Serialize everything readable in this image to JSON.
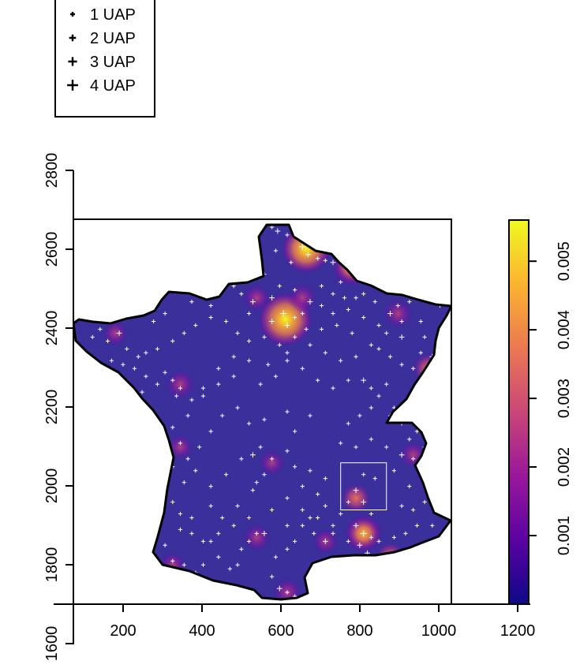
{
  "chart_data": {
    "type": "heatmap",
    "title": "",
    "xlabel": "",
    "ylabel": "",
    "xlim": [
      40,
      1240
    ],
    "ylim": [
      1600,
      2810
    ],
    "x_ticks": [
      200,
      400,
      600,
      800,
      1000,
      1200
    ],
    "y_ticks": [
      1600,
      1800,
      2000,
      2200,
      2400,
      2600,
      2800
    ],
    "map_window": {
      "x": [
        40,
        1030
      ],
      "y": [
        1700,
        2680
      ]
    },
    "highlight_window": {
      "x": [
        740,
        860
      ],
      "y": [
        1940,
        2060
      ],
      "color": "#ffffff"
    },
    "legend": {
      "placement": "top-left",
      "items": [
        "1 UAP",
        "2 UAP",
        "3 UAP",
        "4 UAP"
      ]
    },
    "colorbar": {
      "ticks": [
        0.001,
        0.002,
        0.003,
        0.004,
        0.005
      ],
      "range": [
        0,
        0.0056
      ],
      "colors": [
        "#0d0887",
        "#5b02a3",
        "#9a179b",
        "#cb4678",
        "#eb7852",
        "#fbb32f",
        "#f0f921"
      ]
    },
    "background_color": "#3b2f9c",
    "point_color": "#ffffff",
    "hotspots": [
      {
        "x": 595,
        "y": 2425,
        "weight": 1.0
      },
      {
        "x": 650,
        "y": 2605,
        "weight": 0.85
      },
      {
        "x": 770,
        "y": 2560,
        "weight": 0.6
      },
      {
        "x": 800,
        "y": 1880,
        "weight": 0.55
      },
      {
        "x": 780,
        "y": 1970,
        "weight": 0.35
      },
      {
        "x": 970,
        "y": 2300,
        "weight": 0.4
      },
      {
        "x": 890,
        "y": 2440,
        "weight": 0.3
      },
      {
        "x": 870,
        "y": 1820,
        "weight": 0.35
      },
      {
        "x": 930,
        "y": 2080,
        "weight": 0.25
      },
      {
        "x": 600,
        "y": 1730,
        "weight": 0.3
      },
      {
        "x": 320,
        "y": 2260,
        "weight": 0.3
      },
      {
        "x": 520,
        "y": 2480,
        "weight": 0.25
      },
      {
        "x": 640,
        "y": 2480,
        "weight": 0.3
      },
      {
        "x": 320,
        "y": 2100,
        "weight": 0.2
      },
      {
        "x": 520,
        "y": 1870,
        "weight": 0.25
      },
      {
        "x": 300,
        "y": 1800,
        "weight": 0.2
      },
      {
        "x": 150,
        "y": 2390,
        "weight": 0.2
      },
      {
        "x": 560,
        "y": 2060,
        "weight": 0.2
      },
      {
        "x": 700,
        "y": 1860,
        "weight": 0.2
      }
    ],
    "points": [
      [
        560,
        2660,
        1
      ],
      [
        575,
        2650,
        2
      ],
      [
        600,
        2640,
        1
      ],
      [
        640,
        2610,
        3
      ],
      [
        655,
        2590,
        2
      ],
      [
        680,
        2580,
        1
      ],
      [
        700,
        2575,
        1
      ],
      [
        720,
        2570,
        2
      ],
      [
        760,
        2560,
        2
      ],
      [
        780,
        2540,
        1
      ],
      [
        740,
        2520,
        1
      ],
      [
        610,
        2570,
        1
      ],
      [
        570,
        2600,
        1
      ],
      [
        530,
        2560,
        1
      ],
      [
        510,
        2470,
        2
      ],
      [
        480,
        2490,
        1
      ],
      [
        500,
        2440,
        1
      ],
      [
        560,
        2420,
        2
      ],
      [
        590,
        2440,
        3
      ],
      [
        600,
        2410,
        2
      ],
      [
        620,
        2430,
        1
      ],
      [
        640,
        2440,
        1
      ],
      [
        660,
        2470,
        2
      ],
      [
        690,
        2460,
        1
      ],
      [
        720,
        2440,
        1
      ],
      [
        760,
        2450,
        1
      ],
      [
        780,
        2480,
        1
      ],
      [
        800,
        2430,
        1
      ],
      [
        840,
        2410,
        1
      ],
      [
        870,
        2440,
        2
      ],
      [
        890,
        2460,
        1
      ],
      [
        900,
        2420,
        1
      ],
      [
        920,
        2470,
        1
      ],
      [
        950,
        2420,
        1
      ],
      [
        960,
        2380,
        1
      ],
      [
        980,
        2330,
        2
      ],
      [
        970,
        2300,
        2
      ],
      [
        950,
        2270,
        1
      ],
      [
        900,
        2380,
        2
      ],
      [
        860,
        2390,
        1
      ],
      [
        820,
        2360,
        1
      ],
      [
        770,
        2390,
        1
      ],
      [
        730,
        2410,
        1
      ],
      [
        690,
        2400,
        1
      ],
      [
        650,
        2400,
        1
      ],
      [
        620,
        2380,
        1
      ],
      [
        600,
        2340,
        1
      ],
      [
        580,
        2360,
        1
      ],
      [
        540,
        2380,
        1
      ],
      [
        500,
        2370,
        1
      ],
      [
        470,
        2390,
        1
      ],
      [
        440,
        2420,
        1
      ],
      [
        400,
        2430,
        1
      ],
      [
        360,
        2410,
        1
      ],
      [
        330,
        2390,
        1
      ],
      [
        300,
        2370,
        1
      ],
      [
        260,
        2350,
        1
      ],
      [
        230,
        2340,
        1
      ],
      [
        210,
        2330,
        1
      ],
      [
        180,
        2350,
        1
      ],
      [
        160,
        2390,
        2
      ],
      [
        130,
        2370,
        1
      ],
      [
        110,
        2400,
        1
      ],
      [
        90,
        2380,
        1
      ],
      [
        250,
        2420,
        1
      ],
      [
        280,
        2440,
        1
      ],
      [
        300,
        2500,
        1
      ],
      [
        330,
        2530,
        1
      ],
      [
        300,
        2270,
        1
      ],
      [
        320,
        2250,
        1
      ],
      [
        310,
        2230,
        1
      ],
      [
        350,
        2220,
        1
      ],
      [
        380,
        2250,
        1
      ],
      [
        420,
        2300,
        1
      ],
      [
        460,
        2330,
        1
      ],
      [
        500,
        2320,
        1
      ],
      [
        550,
        2310,
        1
      ],
      [
        600,
        2320,
        1
      ],
      [
        640,
        2300,
        1
      ],
      [
        680,
        2270,
        1
      ],
      [
        720,
        2250,
        1
      ],
      [
        760,
        2270,
        1
      ],
      [
        800,
        2270,
        2
      ],
      [
        820,
        2250,
        1
      ],
      [
        840,
        2230,
        1
      ],
      [
        820,
        2200,
        1
      ],
      [
        790,
        2180,
        1
      ],
      [
        760,
        2160,
        1
      ],
      [
        740,
        2110,
        1
      ],
      [
        780,
        2100,
        1
      ],
      [
        820,
        2120,
        1
      ],
      [
        860,
        2100,
        1
      ],
      [
        870,
        2180,
        1
      ],
      [
        900,
        2160,
        1
      ],
      [
        900,
        2080,
        2
      ],
      [
        930,
        2070,
        1
      ],
      [
        950,
        2040,
        1
      ],
      [
        920,
        2000,
        1
      ],
      [
        880,
        2040,
        1
      ],
      [
        830,
        2020,
        1
      ],
      [
        800,
        2030,
        1
      ],
      [
        780,
        1990,
        2
      ],
      [
        800,
        1960,
        2
      ],
      [
        820,
        1930,
        1
      ],
      [
        780,
        1900,
        2
      ],
      [
        800,
        1880,
        3
      ],
      [
        820,
        1870,
        1
      ],
      [
        790,
        1850,
        2
      ],
      [
        810,
        1830,
        2
      ],
      [
        840,
        1820,
        1
      ],
      [
        860,
        1810,
        2
      ],
      [
        880,
        1820,
        2
      ],
      [
        900,
        1830,
        1
      ],
      [
        920,
        1840,
        1
      ],
      [
        950,
        1850,
        1
      ],
      [
        970,
        1860,
        1
      ],
      [
        930,
        1940,
        1
      ],
      [
        900,
        1950,
        1
      ],
      [
        980,
        1900,
        1
      ],
      [
        1000,
        2000,
        1
      ],
      [
        720,
        1880,
        1
      ],
      [
        700,
        1860,
        2
      ],
      [
        670,
        1880,
        1
      ],
      [
        640,
        1900,
        1
      ],
      [
        660,
        1920,
        1
      ],
      [
        620,
        1860,
        1
      ],
      [
        600,
        1840,
        1
      ],
      [
        570,
        1820,
        1
      ],
      [
        560,
        1770,
        1
      ],
      [
        580,
        1740,
        2
      ],
      [
        600,
        1730,
        1
      ],
      [
        620,
        1720,
        1
      ],
      [
        540,
        1880,
        2
      ],
      [
        520,
        1880,
        1
      ],
      [
        500,
        1860,
        1
      ],
      [
        480,
        1840,
        1
      ],
      [
        470,
        1800,
        1
      ],
      [
        450,
        1790,
        1
      ],
      [
        420,
        1820,
        1
      ],
      [
        400,
        1860,
        1
      ],
      [
        380,
        1800,
        1
      ],
      [
        360,
        1780,
        1
      ],
      [
        330,
        1800,
        1
      ],
      [
        300,
        1810,
        1
      ],
      [
        280,
        1850,
        1
      ],
      [
        320,
        1890,
        1
      ],
      [
        350,
        1920,
        1
      ],
      [
        400,
        1950,
        1
      ],
      [
        430,
        1920,
        1
      ],
      [
        470,
        1950,
        1
      ],
      [
        510,
        1990,
        1
      ],
      [
        540,
        2030,
        1
      ],
      [
        510,
        2080,
        2
      ],
      [
        530,
        2100,
        1
      ],
      [
        560,
        2070,
        1
      ],
      [
        600,
        2090,
        1
      ],
      [
        620,
        2140,
        1
      ],
      [
        660,
        2180,
        1
      ],
      [
        600,
        2190,
        1
      ],
      [
        540,
        2170,
        1
      ],
      [
        500,
        2160,
        1
      ],
      [
        470,
        2200,
        1
      ],
      [
        430,
        2180,
        1
      ],
      [
        400,
        2140,
        1
      ],
      [
        370,
        2100,
        1
      ],
      [
        340,
        2070,
        1
      ],
      [
        320,
        2110,
        1
      ],
      [
        290,
        2100,
        1
      ],
      [
        300,
        2050,
        1
      ],
      [
        330,
        2010,
        1
      ],
      [
        360,
        2040,
        1
      ],
      [
        400,
        2000,
        1
      ],
      [
        440,
        2030,
        1
      ],
      [
        480,
        2070,
        1
      ],
      [
        520,
        2010,
        1
      ],
      [
        600,
        1970,
        1
      ],
      [
        640,
        2000,
        1
      ],
      [
        680,
        1980,
        1
      ],
      [
        700,
        1950,
        1
      ],
      [
        740,
        1930,
        1
      ],
      [
        760,
        1960,
        1
      ],
      [
        700,
        2020,
        1
      ],
      [
        660,
        2040,
        1
      ],
      [
        620,
        2050,
        1
      ],
      [
        260,
        2160,
        1
      ],
      [
        240,
        2200,
        1
      ],
      [
        220,
        2240,
        1
      ],
      [
        260,
        2260,
        1
      ],
      [
        280,
        2290,
        1
      ],
      [
        230,
        2280,
        1
      ],
      [
        200,
        2300,
        1
      ],
      [
        170,
        2310,
        1
      ],
      [
        140,
        2320,
        1
      ],
      [
        350,
        2470,
        1
      ],
      [
        400,
        2460,
        1
      ],
      [
        430,
        2500,
        1
      ],
      [
        460,
        2510,
        1
      ],
      [
        560,
        2480,
        2
      ],
      [
        580,
        2510,
        1
      ],
      [
        620,
        2500,
        1
      ],
      [
        540,
        2540,
        1
      ],
      [
        500,
        2540,
        1
      ],
      [
        690,
        2510,
        1
      ],
      [
        720,
        2490,
        1
      ],
      [
        750,
        2480,
        1
      ],
      [
        800,
        2490,
        1
      ],
      [
        830,
        2470,
        1
      ],
      [
        860,
        2500,
        1
      ],
      [
        880,
        2510,
        1
      ],
      [
        940,
        2500,
        1
      ],
      [
        1000,
        2460,
        1
      ],
      [
        1010,
        2400,
        1
      ],
      [
        990,
        2360,
        1
      ],
      [
        950,
        2340,
        1
      ],
      [
        930,
        2300,
        1
      ],
      [
        900,
        2310,
        1
      ],
      [
        870,
        2330,
        1
      ],
      [
        840,
        2350,
        1
      ],
      [
        780,
        2330,
        1
      ],
      [
        740,
        2320,
        1
      ],
      [
        700,
        2340,
        1
      ],
      [
        660,
        2360,
        1
      ],
      [
        570,
        2280,
        1
      ],
      [
        530,
        2260,
        1
      ],
      [
        460,
        2280,
        1
      ],
      [
        420,
        2260,
        1
      ],
      [
        380,
        2230,
        1
      ],
      [
        340,
        2180,
        1
      ],
      [
        300,
        2150,
        1
      ],
      [
        270,
        2120,
        1
      ],
      [
        260,
        2060,
        1
      ],
      [
        280,
        2000,
        1
      ],
      [
        300,
        1960,
        1
      ],
      [
        320,
        1930,
        1
      ],
      [
        350,
        1880,
        1
      ],
      [
        380,
        1860,
        1
      ],
      [
        420,
        1880,
        1
      ],
      [
        460,
        1900,
        1
      ],
      [
        500,
        1920,
        1
      ],
      [
        560,
        1940,
        1
      ],
      [
        600,
        1900,
        1
      ],
      [
        640,
        1940,
        1
      ],
      [
        680,
        1920,
        1
      ],
      [
        720,
        1900,
        1
      ],
      [
        760,
        1860,
        1
      ],
      [
        840,
        1860,
        1
      ],
      [
        880,
        1870,
        1
      ],
      [
        910,
        1880,
        1
      ],
      [
        940,
        1900,
        1
      ],
      [
        960,
        1960,
        1
      ],
      [
        970,
        2000,
        1
      ],
      [
        960,
        2100,
        1
      ],
      [
        940,
        2140,
        1
      ],
      [
        920,
        2120,
        1
      ],
      [
        880,
        2200,
        1
      ],
      [
        860,
        2260,
        1
      ]
    ]
  }
}
